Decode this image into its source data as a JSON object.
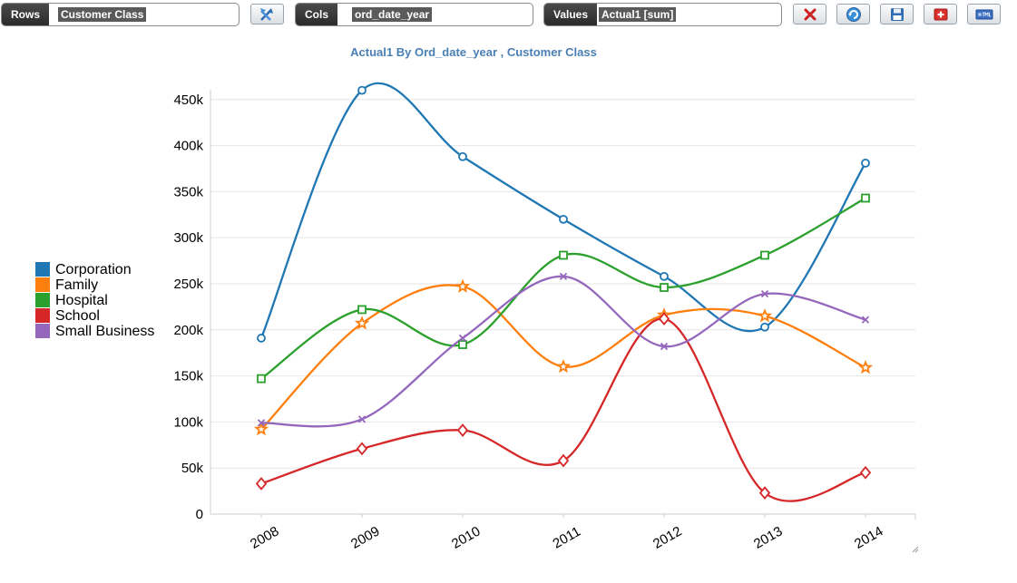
{
  "toolbar": {
    "rows": {
      "label": "Rows",
      "value": "Customer Class"
    },
    "cols": {
      "label": "Cols",
      "value": "ord_date_year"
    },
    "values": {
      "label": "Values",
      "value": "Actual1 [sum]"
    },
    "buttons": [
      {
        "name": "swap-axes-button",
        "icon": "swap-icon"
      },
      {
        "name": "clear-button",
        "icon": "red-x-icon"
      },
      {
        "name": "refresh-button",
        "icon": "refresh-icon"
      },
      {
        "name": "save-button",
        "icon": "floppy-disk-icon"
      },
      {
        "name": "add-button",
        "icon": "red-plus-icon"
      },
      {
        "name": "html-export-button",
        "icon": "html-icon"
      }
    ]
  },
  "chart_data": {
    "type": "line",
    "title": "Actual1 By Ord_date_year , Customer Class",
    "categories": [
      "2008",
      "2009",
      "2010",
      "2011",
      "2012",
      "2013",
      "2014"
    ],
    "ylim": [
      0,
      460000
    ],
    "yticks": [
      {
        "value": 0,
        "label": "0"
      },
      {
        "value": 50000,
        "label": "50k"
      },
      {
        "value": 100000,
        "label": "100k"
      },
      {
        "value": 150000,
        "label": "150k"
      },
      {
        "value": 200000,
        "label": "200k"
      },
      {
        "value": 250000,
        "label": "250k"
      },
      {
        "value": 300000,
        "label": "300k"
      },
      {
        "value": 350000,
        "label": "350k"
      },
      {
        "value": 400000,
        "label": "400k"
      },
      {
        "value": 450000,
        "label": "450k"
      }
    ],
    "grid": true,
    "legend_position": "left",
    "series": [
      {
        "name": "Corporation",
        "color": "#1f77b4",
        "marker": "circle",
        "values": [
          191000,
          460000,
          388000,
          320000,
          258000,
          203000,
          381000
        ]
      },
      {
        "name": "Family",
        "color": "#ff7f0e",
        "marker": "star",
        "values": [
          92000,
          207000,
          247000,
          160000,
          216000,
          215000,
          159000
        ]
      },
      {
        "name": "Hospital",
        "color": "#2ca02c",
        "marker": "square",
        "values": [
          147000,
          222000,
          184000,
          281000,
          246000,
          281000,
          343000
        ]
      },
      {
        "name": "School",
        "color": "#d62728",
        "marker": "diamond",
        "values": [
          33000,
          71000,
          91000,
          58000,
          212000,
          23000,
          45000
        ]
      },
      {
        "name": "Small Business",
        "color": "#9467bd",
        "marker": "cross",
        "values": [
          99000,
          103000,
          191000,
          258000,
          182000,
          239000,
          211000
        ]
      }
    ]
  }
}
